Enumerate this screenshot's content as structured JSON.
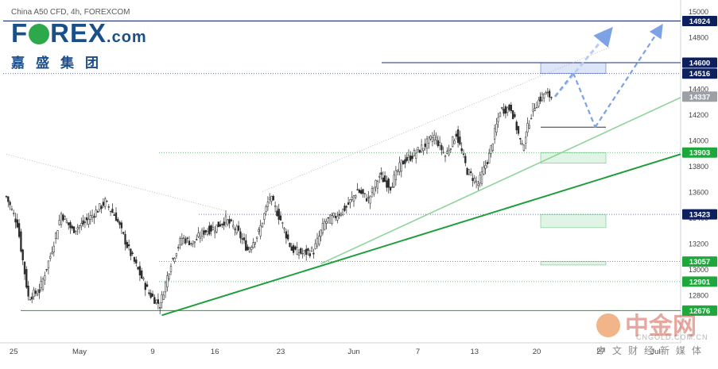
{
  "header": {
    "symbol_line": "China A50 CFD, 4h, FOREXCOM",
    "logo_text": "F",
    "logo_text_rest": "REX",
    "logo_suffix": ".com",
    "logo_cn": "嘉盛集团"
  },
  "watermark": {
    "brand_cn": "中金网",
    "domain": "CNGOLD.COM.CN",
    "tagline_cn": "中文财经新媒体"
  },
  "colors": {
    "candle": "#2a2a2a",
    "trend_green": "#1e9e3a",
    "trend_light_green": "#8fd39b",
    "resistance_navy": "#1c2f6e",
    "projection_blue": "#7da3e6",
    "label_green": "#1ea83c",
    "label_navy": "#0d1f5c",
    "label_gray": "#9aa0a6",
    "zone_blue": "rgba(120,150,230,0.25)",
    "zone_green": "rgba(120,210,140,0.22)"
  },
  "chart_data": {
    "type": "candlestick",
    "instrument": "China A50 CFD",
    "timeframe": "4h",
    "ylim": [
      12500,
      15050
    ],
    "y_ticks": [
      12800,
      13000,
      13200,
      13400,
      13600,
      13800,
      14000,
      14200,
      14400,
      14600,
      14800,
      15000
    ],
    "x_tick_labels": [
      "25",
      "May",
      "9",
      "16",
      "23",
      "Jun",
      "7",
      "13",
      "20",
      "27",
      "Jul"
    ],
    "price_labels": [
      {
        "value": "14924",
        "style": "navy"
      },
      {
        "value": "14600",
        "style": "navy"
      },
      {
        "value": "14516",
        "style": "navy"
      },
      {
        "value": "14337",
        "style": "gray"
      },
      {
        "value": "13903",
        "style": "green"
      },
      {
        "value": "13423",
        "style": "navy"
      },
      {
        "value": "13057",
        "style": "green"
      },
      {
        "value": "12901",
        "style": "green"
      },
      {
        "value": "12676",
        "style": "green"
      }
    ],
    "horizontal_levels": [
      14924,
      14600,
      14516,
      13903,
      13423,
      13057,
      12901,
      12676
    ],
    "zones": [
      {
        "from": 14516,
        "to": 14600,
        "color": "blue"
      },
      {
        "from": 13820,
        "to": 13903,
        "color": "green"
      },
      {
        "from": 13320,
        "to": 13423,
        "color": "green"
      },
      {
        "from": 13030,
        "to": 13057,
        "color": "green"
      }
    ],
    "close_path": [
      {
        "bar": 0,
        "close": 13560
      },
      {
        "bar": 6,
        "close": 13350
      },
      {
        "bar": 12,
        "close": 12780
      },
      {
        "bar": 18,
        "close": 12830
      },
      {
        "bar": 24,
        "close": 13100
      },
      {
        "bar": 30,
        "close": 13430
      },
      {
        "bar": 36,
        "close": 13300
      },
      {
        "bar": 42,
        "close": 13350
      },
      {
        "bar": 48,
        "close": 13430
      },
      {
        "bar": 54,
        "close": 13520
      },
      {
        "bar": 60,
        "close": 13400
      },
      {
        "bar": 66,
        "close": 13180
      },
      {
        "bar": 72,
        "close": 12990
      },
      {
        "bar": 78,
        "close": 12810
      },
      {
        "bar": 84,
        "close": 12720
      },
      {
        "bar": 90,
        "close": 13050
      },
      {
        "bar": 96,
        "close": 13240
      },
      {
        "bar": 102,
        "close": 13200
      },
      {
        "bar": 108,
        "close": 13290
      },
      {
        "bar": 114,
        "close": 13320
      },
      {
        "bar": 120,
        "close": 13380
      },
      {
        "bar": 126,
        "close": 13300
      },
      {
        "bar": 132,
        "close": 13150
      },
      {
        "bar": 138,
        "close": 13280
      },
      {
        "bar": 144,
        "close": 13560
      },
      {
        "bar": 150,
        "close": 13380
      },
      {
        "bar": 156,
        "close": 13150
      },
      {
        "bar": 162,
        "close": 13120
      },
      {
        "bar": 168,
        "close": 13140
      },
      {
        "bar": 174,
        "close": 13360
      },
      {
        "bar": 180,
        "close": 13410
      },
      {
        "bar": 186,
        "close": 13480
      },
      {
        "bar": 192,
        "close": 13610
      },
      {
        "bar": 198,
        "close": 13540
      },
      {
        "bar": 204,
        "close": 13720
      },
      {
        "bar": 210,
        "close": 13640
      },
      {
        "bar": 216,
        "close": 13820
      },
      {
        "bar": 222,
        "close": 13880
      },
      {
        "bar": 228,
        "close": 13950
      },
      {
        "bar": 234,
        "close": 14030
      },
      {
        "bar": 240,
        "close": 13880
      },
      {
        "bar": 246,
        "close": 14050
      },
      {
        "bar": 252,
        "close": 13760
      },
      {
        "bar": 258,
        "close": 13660
      },
      {
        "bar": 264,
        "close": 13880
      },
      {
        "bar": 270,
        "close": 14230
      },
      {
        "bar": 276,
        "close": 14250
      },
      {
        "bar": 282,
        "close": 13940
      },
      {
        "bar": 288,
        "close": 14250
      },
      {
        "bar": 294,
        "close": 14360
      },
      {
        "bar": 298,
        "close": 14337
      }
    ],
    "trend_lines": [
      {
        "name": "",
        "from": {
          "bar": 85,
          "price": 12640
        },
        "to": {
          "bar": 370,
          "price": 13890
        },
        "style": "solid-green"
      },
      {
        "name": "",
        "from": {
          "bar": 172,
          "price": 13040
        },
        "to": {
          "bar": 370,
          "price": 14330
        },
        "style": "solid-lightgreen"
      },
      {
        "name": "",
        "from": {
          "bar": 140,
          "price": 13600
        },
        "to": {
          "bar": 330,
          "price": 14720
        },
        "style": "dotted-gray"
      },
      {
        "name": "",
        "from": {
          "bar": 0,
          "price": 13890
        },
        "to": {
          "bar": 120,
          "price": 13450
        },
        "style": "dotted-gray"
      }
    ],
    "projections": [
      {
        "from": {
          "bar": 300,
          "price": 14337
        },
        "to": {
          "bar": 330,
          "price": 14850
        }
      },
      {
        "from": {
          "bar": 300,
          "price": 14337
        },
        "to": {
          "bar": 310,
          "price": 14520
        }
      },
      {
        "from": {
          "bar": 310,
          "price": 14520
        },
        "to": {
          "bar": 322,
          "price": 14100
        }
      },
      {
        "from": {
          "bar": 322,
          "price": 14100
        },
        "to": {
          "bar": 358,
          "price": 14880
        }
      }
    ],
    "grid": false,
    "legend": "none"
  }
}
